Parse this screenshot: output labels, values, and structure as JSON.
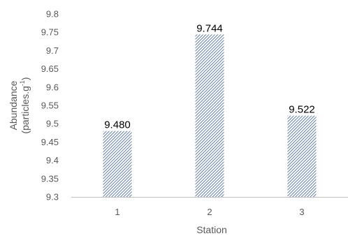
{
  "chart_data": {
    "type": "bar",
    "title": "",
    "xlabel": "Station",
    "ylabel": "Abundance",
    "ylabel_unit": "(particles.g",
    "ylabel_unit_sup": "-1",
    "ylabel_unit_close": ")",
    "categories": [
      "1",
      "2",
      "3"
    ],
    "values": [
      9.48,
      9.744,
      9.522
    ],
    "data_labels": [
      "9.480",
      "9.744",
      "9.522"
    ],
    "ylim": [
      9.3,
      9.8
    ],
    "yticks": [
      "9.3",
      "9.35",
      "9.4",
      "9.45",
      "9.5",
      "9.55",
      "9.6",
      "9.65",
      "9.7",
      "9.75",
      "9.8"
    ],
    "grid": false,
    "legend": "none",
    "bar_pattern": "diagonal-hatch",
    "bar_color": "#3f5f8f",
    "axis_color": "#bfbfbf",
    "tick_color": "#595959"
  }
}
